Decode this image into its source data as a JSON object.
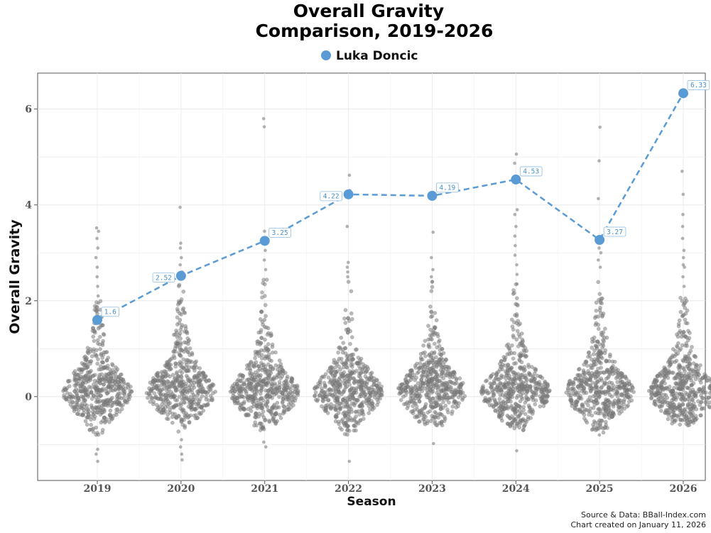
{
  "chart_data": {
    "type": "scatter",
    "title_lines": [
      "Overall Gravity",
      "Comparison, 2019-2026"
    ],
    "xlabel": "Season",
    "ylabel": "Overall Gravity",
    "categories": [
      "2019",
      "2020",
      "2021",
      "2022",
      "2023",
      "2024",
      "2025",
      "2026"
    ],
    "y_ticks": [
      0,
      2,
      4,
      6
    ],
    "ylim": [
      -1.75,
      6.75
    ],
    "grid": true,
    "legend_position": "top-center",
    "highlight_color": "#5b9bd5",
    "population_color": "#7f7f7f",
    "series": [
      {
        "name": "Luka Doncic",
        "values": [
          1.6,
          2.52,
          3.25,
          4.22,
          4.19,
          4.53,
          3.27,
          6.33
        ],
        "labels": [
          "1.6",
          "2.52",
          "3.25",
          "4.22",
          "4.19",
          "4.53",
          "3.27",
          "6.33"
        ]
      }
    ],
    "population_outliers": [
      [
        3.52,
        3.45,
        3.3,
        3.1,
        2.9,
        2.7,
        2.5,
        2.3,
        2.1,
        1.95,
        1.8,
        -1.1,
        -1.2,
        -1.35
      ],
      [
        3.95,
        3.2,
        3.1,
        2.9,
        2.75,
        2.6,
        2.45,
        -0.9,
        -1.05,
        -1.2,
        -1.32
      ],
      [
        5.8,
        5.63,
        3.45,
        3.2,
        3.05,
        2.85,
        2.65,
        -0.95,
        -1.05
      ],
      [
        4.62,
        4.3,
        3.55,
        2.8,
        2.7,
        2.6,
        2.5,
        -1.35
      ],
      [
        3.43,
        2.9,
        2.65,
        2.5,
        2.4,
        -0.98
      ],
      [
        5.06,
        4.87,
        3.9,
        3.8,
        3.55,
        3.35,
        3.15,
        2.95,
        2.75,
        2.55,
        2.35,
        -1.13
      ],
      [
        5.62,
        4.92,
        4.13,
        3.3,
        3.1,
        3.0,
        2.85,
        2.7,
        -0.8
      ],
      [
        4.7,
        4.22,
        3.8,
        3.55,
        3.3,
        3.05,
        2.9,
        2.75,
        2.7,
        2.5,
        2.3
      ]
    ],
    "population_core_upper": [
      2.0,
      2.4,
      2.6,
      2.8,
      2.4,
      2.4,
      2.7,
      2.2
    ],
    "population_core_lower": [
      -0.8,
      -0.8,
      -0.7,
      -0.8,
      -0.6,
      -0.7,
      -0.75,
      -0.6
    ],
    "caption_lines": [
      "Source & Data: BBall-Index.com",
      "Chart created on January 11, 2026"
    ]
  }
}
